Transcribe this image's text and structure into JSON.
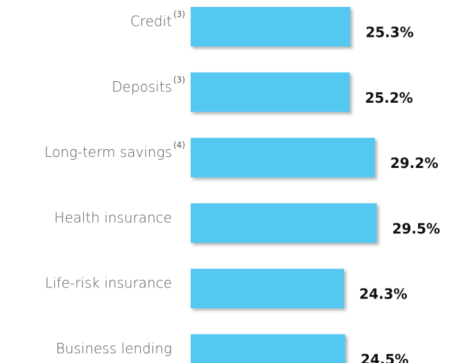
{
  "chart_data": {
    "type": "bar",
    "orientation": "horizontal",
    "categories": [
      "Credit",
      "Deposits",
      "Long-term savings",
      "Health insurance",
      "Life-risk insurance",
      "Business lending"
    ],
    "notes": [
      "(3)",
      "(3)",
      "(4)",
      null,
      null,
      null
    ],
    "values": [
      25.3,
      25.2,
      29.2,
      29.5,
      24.3,
      24.5
    ],
    "value_labels": [
      "25.3%",
      "25.2%",
      "29.2%",
      "29.5%",
      "24.3%",
      "24.5%"
    ],
    "color": "#55c8f2"
  }
}
